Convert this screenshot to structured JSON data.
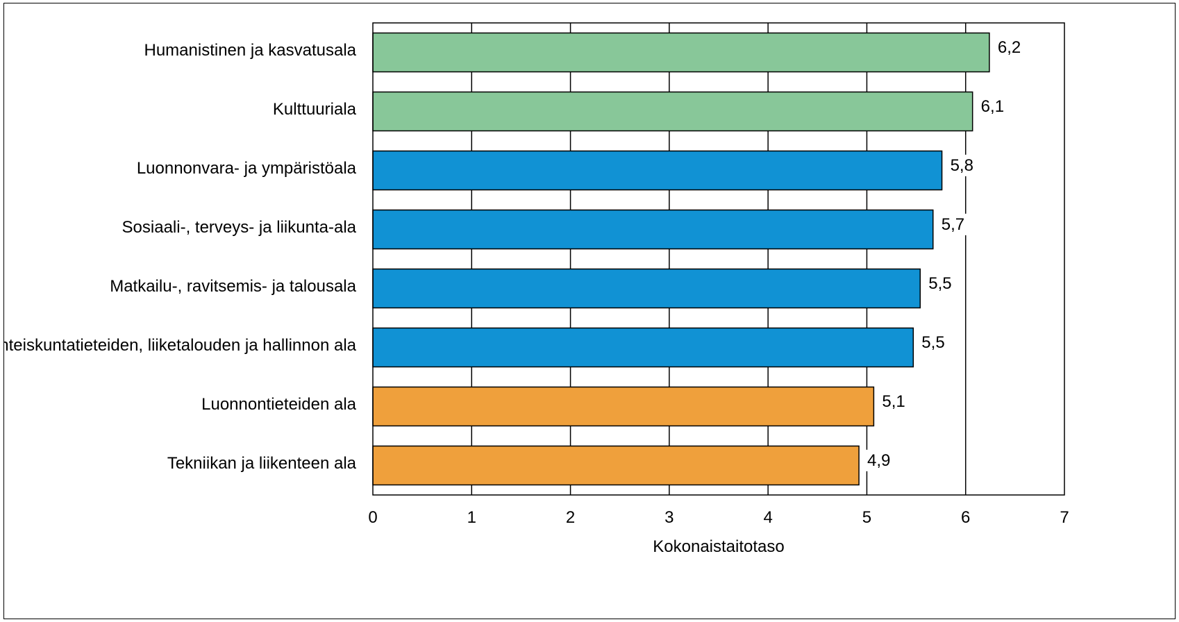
{
  "chart_data": {
    "type": "bar",
    "orientation": "horizontal",
    "categories": [
      "Humanistinen ja kasvatusala",
      "Kulttuuriala",
      "Luonnonvara- ja ympäristöala",
      "Sosiaali-, terveys- ja liikunta-ala",
      "Matkailu-, ravitsemis- ja talousala",
      "Yhteiskuntatieteiden, liiketalouden ja hallinnon ala",
      "Luonnontieteiden ala",
      "Tekniikan ja liikenteen ala"
    ],
    "values": [
      6.24,
      6.07,
      5.76,
      5.67,
      5.54,
      5.47,
      5.07,
      4.92
    ],
    "value_labels": [
      "6,2",
      "6,1",
      "5,8",
      "5,7",
      "5,5",
      "5,5",
      "5,1",
      "4,9"
    ],
    "bar_colors": [
      "#88c799",
      "#88c799",
      "#1192d4",
      "#1192d4",
      "#1192d4",
      "#1192d4",
      "#efa03c",
      "#efa03c"
    ],
    "xlabel": "Kokonaistaitotaso",
    "ylabel": "",
    "title": "",
    "xlim": [
      0,
      7
    ],
    "xticks": [
      "0",
      "1",
      "2",
      "3",
      "4",
      "5",
      "6",
      "7"
    ],
    "grid": "vertical",
    "legend": "none"
  }
}
